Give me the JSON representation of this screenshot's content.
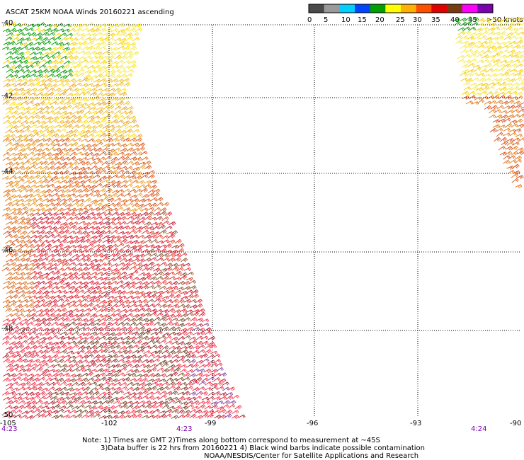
{
  "title": "ASCAT 25KM NOAA Winds 20160221 ascending",
  "legend": {
    "labels": [
      "0",
      "5",
      "10",
      "15",
      "20",
      "25",
      "30",
      "35",
      "40",
      "45",
      ">50 knots"
    ],
    "colors": [
      "#4a4a4a",
      "#9a9a9a",
      "#00d0ff",
      "#0044ff",
      "#00a000",
      "#ffff00",
      "#ffb000",
      "#ff5000",
      "#e00000",
      "#7a3a10",
      "#ff00ff",
      "#7a00b0"
    ]
  },
  "map": {
    "lat_labels": [
      "-40",
      "-42",
      "-44",
      "-46",
      "-48",
      "-50"
    ],
    "lon_labels": [
      "-105",
      "-102",
      "-99",
      "-96",
      "-93",
      "-90"
    ],
    "times": [
      "4:23",
      "4:23",
      "4:24"
    ]
  },
  "notes": [
    "Note: 1) Times are GMT 2)Times along bottom correspond to measurement at ~45S",
    "3)Data buffer is 22 hrs from 20160221 4) Black wind barbs indicate possible contamination",
    "NOAA/NESDIS/Center for Satellite Applications and Research"
  ]
}
